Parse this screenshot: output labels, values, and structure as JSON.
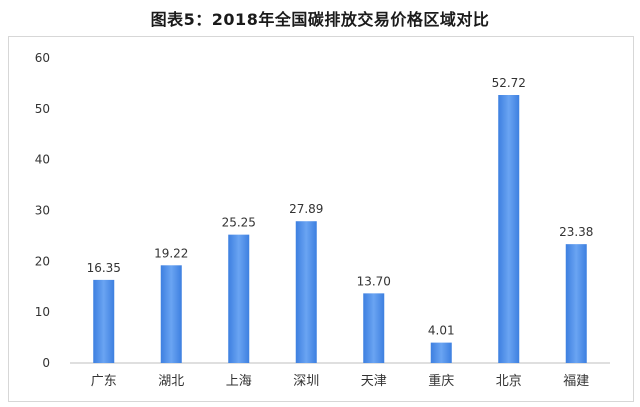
{
  "chart_data": {
    "type": "bar",
    "title": "图表5：2018年全国碳排放交易价格区域对比",
    "xlabel": "",
    "ylabel": "",
    "categories": [
      "广东",
      "湖北",
      "上海",
      "深圳",
      "天津",
      "重庆",
      "北京",
      "福建"
    ],
    "values": [
      16.35,
      19.22,
      25.25,
      27.89,
      13.7,
      4.01,
      52.72,
      23.38
    ],
    "value_labels": [
      "16.35",
      "19.22",
      "25.25",
      "27.89",
      "13.70",
      "4.01",
      "52.72",
      "23.38"
    ],
    "ylim": [
      0,
      60
    ],
    "yticks": [
      0,
      10,
      20,
      30,
      40,
      50,
      60
    ],
    "grid": false,
    "legend": "none",
    "bar_color": "#3d7fe0",
    "bar_color_light": "#6aa4f2"
  }
}
